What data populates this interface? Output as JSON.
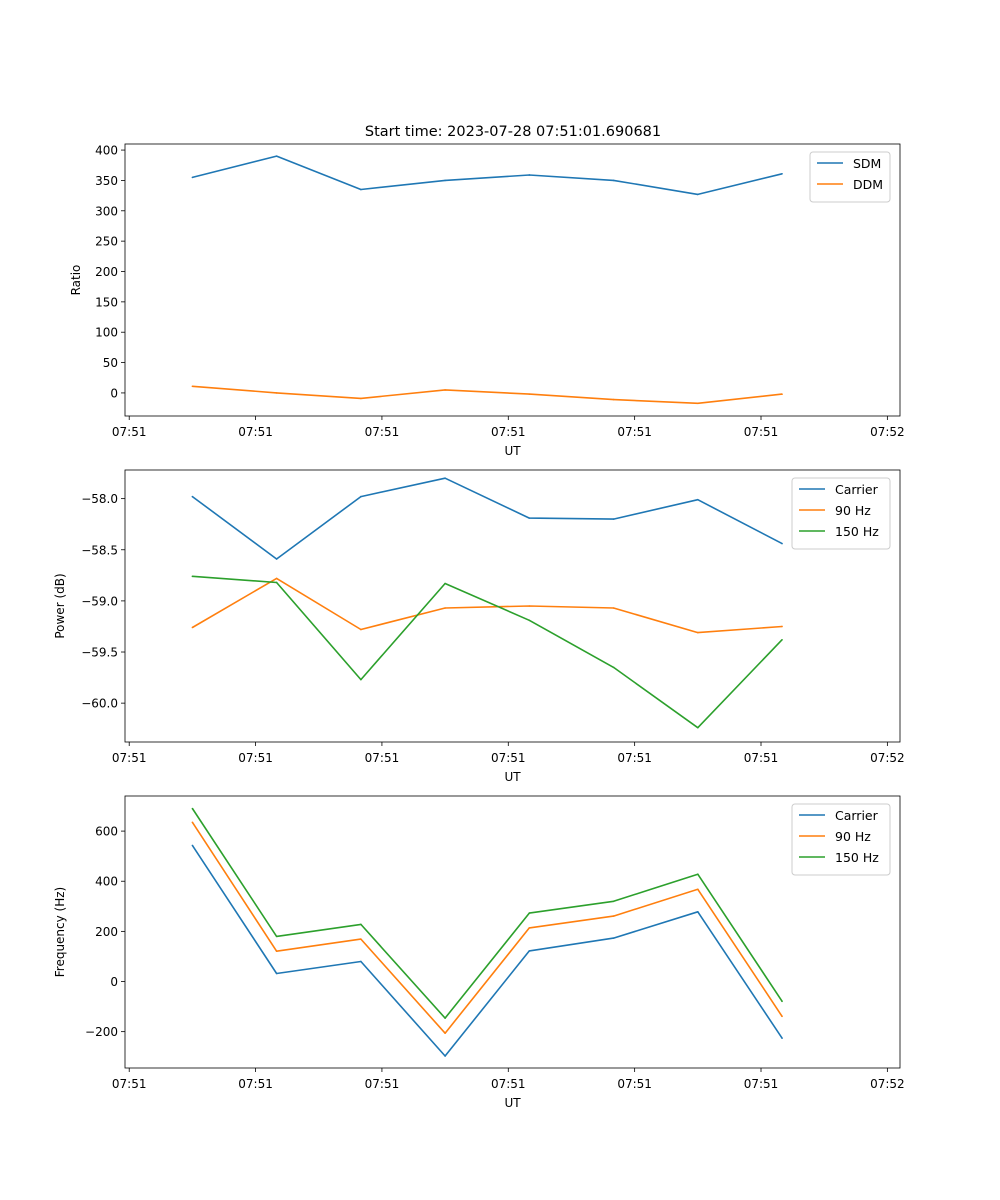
{
  "title": "Start time: 2023-07-28 07:51:01.690681",
  "chart_data": [
    {
      "type": "line",
      "title": "Start time: 2023-07-28 07:51:01.690681",
      "xlabel": "UT",
      "ylabel": "Ratio",
      "x": [
        0,
        1,
        2,
        3,
        4,
        5,
        6,
        7
      ],
      "xlim": [
        -0.8,
        8.4
      ],
      "xtick_positions": [
        -0.75,
        0.75,
        2.25,
        3.75,
        5.25,
        6.75,
        8.25
      ],
      "xtick_labels": [
        "07:51",
        "07:51",
        "07:51",
        "07:51",
        "07:51",
        "07:51",
        "07:52"
      ],
      "ylim": [
        -38,
        410
      ],
      "yticks": [
        0,
        50,
        100,
        150,
        200,
        250,
        300,
        350,
        400
      ],
      "ytick_labels": [
        "0",
        "50",
        "100",
        "150",
        "200",
        "250",
        "300",
        "350",
        "400"
      ],
      "legend_position": "top-right",
      "series": [
        {
          "name": "SDM",
          "color": "#1f77b4",
          "values": [
            355,
            390,
            335,
            350,
            359,
            350,
            327,
            361
          ]
        },
        {
          "name": "DDM",
          "color": "#ff7f0e",
          "values": [
            11,
            0,
            -9,
            5,
            -2,
            -11,
            -17,
            -2
          ]
        }
      ]
    },
    {
      "type": "line",
      "title": "",
      "xlabel": "UT",
      "ylabel": "Power (dB)",
      "x": [
        0,
        1,
        2,
        3,
        4,
        5,
        6,
        7
      ],
      "xlim": [
        -0.8,
        8.4
      ],
      "xtick_positions": [
        -0.75,
        0.75,
        2.25,
        3.75,
        5.25,
        6.75,
        8.25
      ],
      "xtick_labels": [
        "07:51",
        "07:51",
        "07:51",
        "07:51",
        "07:51",
        "07:51",
        "07:52"
      ],
      "ylim": [
        -60.38,
        -57.72
      ],
      "yticks": [
        -60.0,
        -59.5,
        -59.0,
        -58.5,
        -58.0
      ],
      "ytick_labels": [
        "−60.0",
        "−59.5",
        "−59.0",
        "−58.5",
        "−58.0"
      ],
      "legend_position": "top-right",
      "series": [
        {
          "name": "Carrier",
          "color": "#1f77b4",
          "values": [
            -57.98,
            -58.59,
            -57.98,
            -57.8,
            -58.19,
            -58.2,
            -58.01,
            -58.44
          ]
        },
        {
          "name": "90 Hz",
          "color": "#ff7f0e",
          "values": [
            -59.26,
            -58.78,
            -59.28,
            -59.07,
            -59.05,
            -59.07,
            -59.31,
            -59.25
          ]
        },
        {
          "name": "150 Hz",
          "color": "#2ca02c",
          "values": [
            -58.76,
            -58.82,
            -59.77,
            -58.83,
            -59.19,
            -59.65,
            -60.24,
            -59.38
          ]
        }
      ]
    },
    {
      "type": "line",
      "title": "",
      "xlabel": "UT",
      "ylabel": "Frequency (Hz)",
      "x": [
        0,
        1,
        2,
        3,
        4,
        5,
        6,
        7
      ],
      "xlim": [
        -0.8,
        8.4
      ],
      "xtick_positions": [
        -0.75,
        0.75,
        2.25,
        3.75,
        5.25,
        6.75,
        8.25
      ],
      "xtick_labels": [
        "07:51",
        "07:51",
        "07:51",
        "07:51",
        "07:51",
        "07:51",
        "07:52"
      ],
      "ylim": [
        -345,
        740
      ],
      "yticks": [
        -200,
        0,
        200,
        400,
        600
      ],
      "ytick_labels": [
        "−200",
        "0",
        "200",
        "400",
        "600"
      ],
      "legend_position": "top-right",
      "series": [
        {
          "name": "Carrier",
          "color": "#1f77b4",
          "values": [
            543,
            32,
            80,
            -297,
            122,
            173,
            278,
            -226
          ]
        },
        {
          "name": "90 Hz",
          "color": "#ff7f0e",
          "values": [
            635,
            121,
            169,
            -206,
            214,
            261,
            368,
            -139
          ]
        },
        {
          "name": "150 Hz",
          "color": "#2ca02c",
          "values": [
            690,
            180,
            228,
            -146,
            273,
            320,
            428,
            -79
          ]
        }
      ]
    }
  ]
}
